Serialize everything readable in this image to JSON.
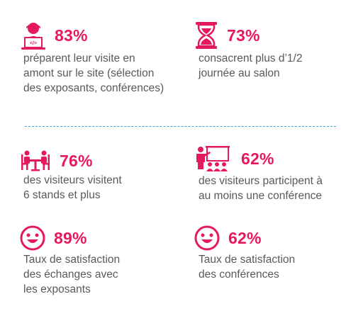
{
  "colors": {
    "accent": "#e5195f",
    "text": "#595959",
    "divider": "#3aa8d8"
  },
  "stats_top": [
    {
      "icon": "person-laptop-icon",
      "percent": "83%",
      "lines": [
        "préparent leur visite en",
        "amont sur le site (sélection",
        "des exposants, conférences)"
      ]
    },
    {
      "icon": "hourglass-icon",
      "percent": "73%",
      "lines": [
        "consacrent plus d’1/2",
        "journée au salon"
      ]
    }
  ],
  "stats_bottom": [
    {
      "icon": "meeting-table-icon",
      "percent": "76%",
      "lines": [
        "des visiteurs visitent",
        "6 stands et plus"
      ]
    },
    {
      "icon": "conference-presenter-icon",
      "percent": "62%",
      "lines": [
        "des visiteurs participent à",
        "au moins une conférence"
      ]
    },
    {
      "icon": "smiley-face-icon",
      "percent": "89%",
      "lines": [
        "Taux de satisfaction",
        "des échanges avec",
        "les exposants"
      ]
    },
    {
      "icon": "smiley-face-icon",
      "percent": "62%",
      "lines": [
        "Taux de satisfaction",
        "des conférences"
      ]
    }
  ]
}
